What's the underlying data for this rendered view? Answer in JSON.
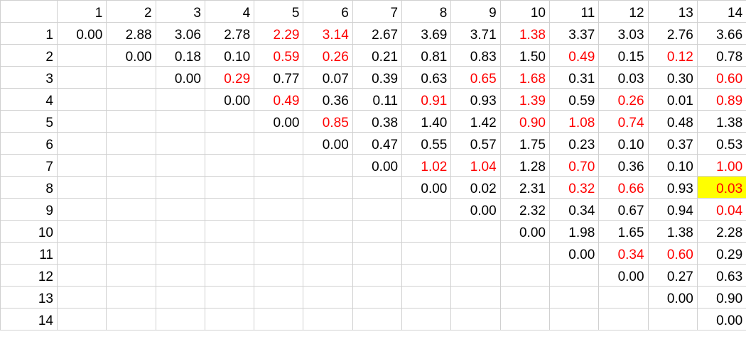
{
  "header_row": [
    "",
    "1",
    "2",
    "3",
    "4",
    "5",
    "6",
    "7",
    "8",
    "9",
    "10",
    "11",
    "12",
    "13",
    "14"
  ],
  "rows": [
    {
      "label": "1",
      "cells": [
        "0.00",
        "2.88",
        "3.06",
        "2.78",
        "2.29",
        "3.14",
        "2.67",
        "3.69",
        "3.71",
        "1.38",
        "3.37",
        "3.03",
        "2.76",
        "3.66"
      ]
    },
    {
      "label": "2",
      "cells": [
        "",
        "0.00",
        "0.18",
        "0.10",
        "0.59",
        "0.26",
        "0.21",
        "0.81",
        "0.83",
        "1.50",
        "0.49",
        "0.15",
        "0.12",
        "0.78"
      ]
    },
    {
      "label": "3",
      "cells": [
        "",
        "",
        "0.00",
        "0.29",
        "0.77",
        "0.07",
        "0.39",
        "0.63",
        "0.65",
        "1.68",
        "0.31",
        "0.03",
        "0.30",
        "0.60"
      ]
    },
    {
      "label": "4",
      "cells": [
        "",
        "",
        "",
        "0.00",
        "0.49",
        "0.36",
        "0.11",
        "0.91",
        "0.93",
        "1.39",
        "0.59",
        "0.26",
        "0.01",
        "0.89"
      ]
    },
    {
      "label": "5",
      "cells": [
        "",
        "",
        "",
        "",
        "0.00",
        "0.85",
        "0.38",
        "1.40",
        "1.42",
        "0.90",
        "1.08",
        "0.74",
        "0.48",
        "1.38"
      ]
    },
    {
      "label": "6",
      "cells": [
        "",
        "",
        "",
        "",
        "",
        "0.00",
        "0.47",
        "0.55",
        "0.57",
        "1.75",
        "0.23",
        "0.10",
        "0.37",
        "0.53"
      ]
    },
    {
      "label": "7",
      "cells": [
        "",
        "",
        "",
        "",
        "",
        "",
        "0.00",
        "1.02",
        "1.04",
        "1.28",
        "0.70",
        "0.36",
        "0.10",
        "1.00"
      ]
    },
    {
      "label": "8",
      "cells": [
        "",
        "",
        "",
        "",
        "",
        "",
        "",
        "0.00",
        "0.02",
        "2.31",
        "0.32",
        "0.66",
        "0.93",
        "0.03"
      ]
    },
    {
      "label": "9",
      "cells": [
        "",
        "",
        "",
        "",
        "",
        "",
        "",
        "",
        "0.00",
        "2.32",
        "0.34",
        "0.67",
        "0.94",
        "0.04"
      ]
    },
    {
      "label": "10",
      "cells": [
        "",
        "",
        "",
        "",
        "",
        "",
        "",
        "",
        "",
        "0.00",
        "1.98",
        "1.65",
        "1.38",
        "2.28"
      ]
    },
    {
      "label": "11",
      "cells": [
        "",
        "",
        "",
        "",
        "",
        "",
        "",
        "",
        "",
        "",
        "0.00",
        "0.34",
        "0.60",
        "0.29"
      ]
    },
    {
      "label": "12",
      "cells": [
        "",
        "",
        "",
        "",
        "",
        "",
        "",
        "",
        "",
        "",
        "",
        "0.00",
        "0.27",
        "0.63"
      ]
    },
    {
      "label": "13",
      "cells": [
        "",
        "",
        "",
        "",
        "",
        "",
        "",
        "",
        "",
        "",
        "",
        "",
        "0.00",
        "0.90"
      ]
    },
    {
      "label": "14",
      "cells": [
        "",
        "",
        "",
        "",
        "",
        "",
        "",
        "",
        "",
        "",
        "",
        "",
        "",
        "0.00"
      ]
    }
  ],
  "red_cells": [
    [
      1,
      5
    ],
    [
      1,
      6
    ],
    [
      1,
      10
    ],
    [
      2,
      5
    ],
    [
      2,
      6
    ],
    [
      2,
      11
    ],
    [
      2,
      13
    ],
    [
      3,
      4
    ],
    [
      3,
      9
    ],
    [
      3,
      10
    ],
    [
      3,
      14
    ],
    [
      4,
      5
    ],
    [
      4,
      8
    ],
    [
      4,
      10
    ],
    [
      4,
      12
    ],
    [
      4,
      14
    ],
    [
      5,
      6
    ],
    [
      5,
      10
    ],
    [
      5,
      11
    ],
    [
      5,
      12
    ],
    [
      7,
      8
    ],
    [
      7,
      9
    ],
    [
      7,
      11
    ],
    [
      7,
      14
    ],
    [
      8,
      11
    ],
    [
      8,
      12
    ],
    [
      8,
      14
    ],
    [
      9,
      14
    ],
    [
      11,
      12
    ],
    [
      11,
      13
    ]
  ],
  "highlight_cells": [
    [
      8,
      14
    ]
  ],
  "colors": {
    "highlight_text": "#ff0000",
    "highlight_fill": "#ffff00",
    "normal_text": "#000000",
    "grid": "#d0d0d0"
  }
}
